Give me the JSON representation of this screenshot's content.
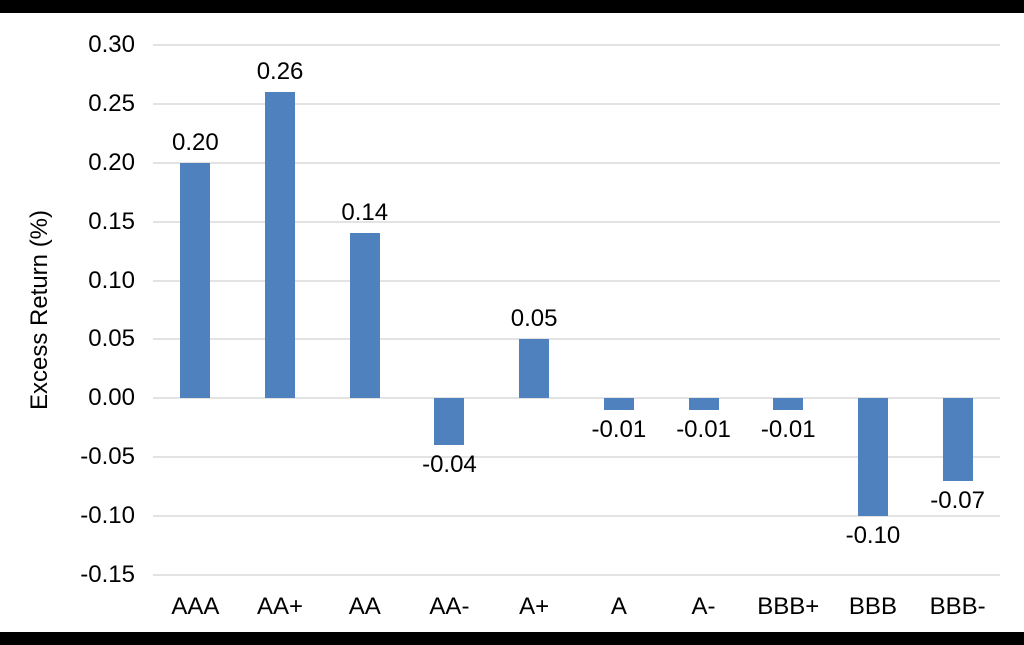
{
  "frame": {
    "letterbox_color": "#000000",
    "chart_background": "#ffffff"
  },
  "chart_data": {
    "type": "bar",
    "title": "",
    "xlabel": "",
    "ylabel": "Excess Return (%)",
    "categories": [
      "AAA",
      "AA+",
      "AA",
      "AA-",
      "A+",
      "A",
      "A-",
      "BBB+",
      "BBB",
      "BBB-"
    ],
    "values": [
      0.2,
      0.26,
      0.14,
      -0.04,
      0.05,
      -0.01,
      -0.01,
      -0.01,
      -0.1,
      -0.07
    ],
    "data_labels": [
      "0.20",
      "0.26",
      "0.14",
      "-0.04",
      "0.05",
      "-0.01",
      "-0.01",
      "-0.01",
      "-0.10",
      "-0.07"
    ],
    "ylim": [
      -0.15,
      0.3
    ],
    "ytick_labels": [
      "0.30",
      "0.25",
      "0.20",
      "0.15",
      "0.10",
      "0.05",
      "0.00",
      "-0.05",
      "-0.10",
      "-0.15"
    ],
    "grid": true,
    "legend": false,
    "bar_color": "#4e81bd",
    "gridline_color": "#e3e3e3",
    "text_color": "#000000"
  }
}
